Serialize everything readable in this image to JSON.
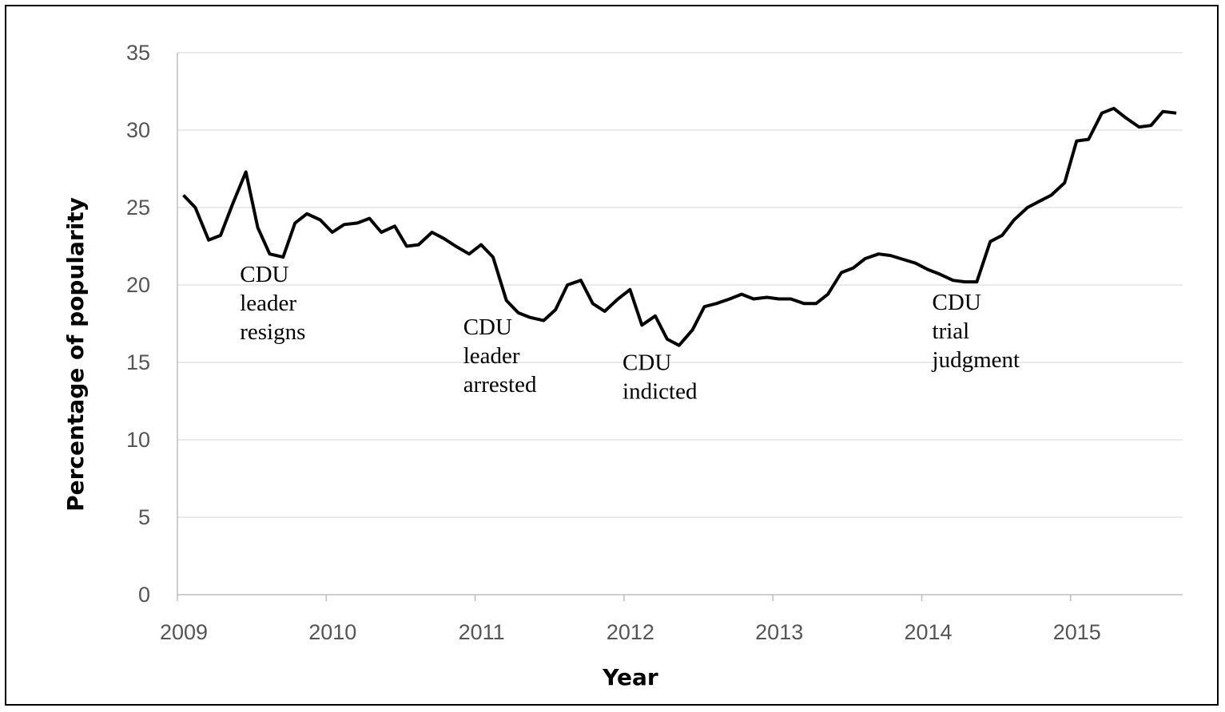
{
  "chart_data": {
    "type": "line",
    "title": "",
    "xlabel": "Year",
    "ylabel": "Percentage of popularity",
    "xlim": [
      2009,
      2015.75
    ],
    "ylim": [
      0,
      35
    ],
    "x_ticks": [
      "2009",
      "2010",
      "2011",
      "2012",
      "2013",
      "2014",
      "2015"
    ],
    "y_ticks": [
      "0",
      "5",
      "10",
      "15",
      "20",
      "25",
      "30",
      "35"
    ],
    "grid": "horizontal",
    "legend": "none",
    "line_color": "#000000",
    "series": [
      {
        "points": [
          [
            2009.04,
            25.8
          ],
          [
            2009.12,
            25.0
          ],
          [
            2009.21,
            22.9
          ],
          [
            2009.29,
            23.2
          ],
          [
            2009.37,
            25.2
          ],
          [
            2009.46,
            27.3
          ],
          [
            2009.54,
            23.7
          ],
          [
            2009.62,
            22.0
          ],
          [
            2009.71,
            21.8
          ],
          [
            2009.79,
            24.0
          ],
          [
            2009.87,
            24.6
          ],
          [
            2009.96,
            24.2
          ],
          [
            2010.04,
            23.4
          ],
          [
            2010.12,
            23.9
          ],
          [
            2010.21,
            24.0
          ],
          [
            2010.29,
            24.3
          ],
          [
            2010.37,
            23.4
          ],
          [
            2010.46,
            23.8
          ],
          [
            2010.54,
            22.5
          ],
          [
            2010.62,
            22.6
          ],
          [
            2010.71,
            23.4
          ],
          [
            2010.79,
            23.0
          ],
          [
            2010.87,
            22.5
          ],
          [
            2010.96,
            22.0
          ],
          [
            2011.04,
            22.6
          ],
          [
            2011.12,
            21.8
          ],
          [
            2011.21,
            19.0
          ],
          [
            2011.29,
            18.2
          ],
          [
            2011.37,
            17.9
          ],
          [
            2011.46,
            17.7
          ],
          [
            2011.54,
            18.4
          ],
          [
            2011.62,
            20.0
          ],
          [
            2011.71,
            20.3
          ],
          [
            2011.79,
            18.8
          ],
          [
            2011.87,
            18.3
          ],
          [
            2011.96,
            19.1
          ],
          [
            2012.04,
            19.7
          ],
          [
            2012.12,
            17.4
          ],
          [
            2012.21,
            18.0
          ],
          [
            2012.29,
            16.5
          ],
          [
            2012.37,
            16.1
          ],
          [
            2012.46,
            17.1
          ],
          [
            2012.54,
            18.6
          ],
          [
            2012.62,
            18.8
          ],
          [
            2012.71,
            19.1
          ],
          [
            2012.79,
            19.4
          ],
          [
            2012.87,
            19.1
          ],
          [
            2012.96,
            19.2
          ],
          [
            2013.04,
            19.1
          ],
          [
            2013.12,
            19.1
          ],
          [
            2013.21,
            18.8
          ],
          [
            2013.29,
            18.8
          ],
          [
            2013.37,
            19.4
          ],
          [
            2013.46,
            20.8
          ],
          [
            2013.54,
            21.1
          ],
          [
            2013.62,
            21.7
          ],
          [
            2013.71,
            22.0
          ],
          [
            2013.79,
            21.9
          ],
          [
            2013.96,
            21.4
          ],
          [
            2014.04,
            21.0
          ],
          [
            2014.12,
            20.7
          ],
          [
            2014.21,
            20.3
          ],
          [
            2014.29,
            20.2
          ],
          [
            2014.37,
            20.2
          ],
          [
            2014.46,
            22.8
          ],
          [
            2014.54,
            23.2
          ],
          [
            2014.62,
            24.2
          ],
          [
            2014.71,
            25.0
          ],
          [
            2014.79,
            25.4
          ],
          [
            2014.87,
            25.8
          ],
          [
            2014.96,
            26.6
          ],
          [
            2015.04,
            29.3
          ],
          [
            2015.12,
            29.4
          ],
          [
            2015.21,
            31.1
          ],
          [
            2015.29,
            31.4
          ],
          [
            2015.37,
            30.8
          ],
          [
            2015.46,
            30.2
          ],
          [
            2015.54,
            30.3
          ],
          [
            2015.62,
            31.2
          ],
          [
            2015.71,
            31.1
          ]
        ]
      }
    ],
    "annotations": [
      {
        "lines": [
          "CDU",
          "leader",
          "resigns"
        ],
        "x": 2009.42,
        "y": 20.2
      },
      {
        "lines": [
          "CDU",
          "leader",
          "arrested"
        ],
        "x": 2010.92,
        "y": 16.8
      },
      {
        "lines": [
          "CDU",
          "indicted"
        ],
        "x": 2011.99,
        "y": 14.5
      },
      {
        "lines": [
          "CDU",
          "trial",
          "judgment"
        ],
        "x": 2014.07,
        "y": 18.4
      }
    ]
  }
}
